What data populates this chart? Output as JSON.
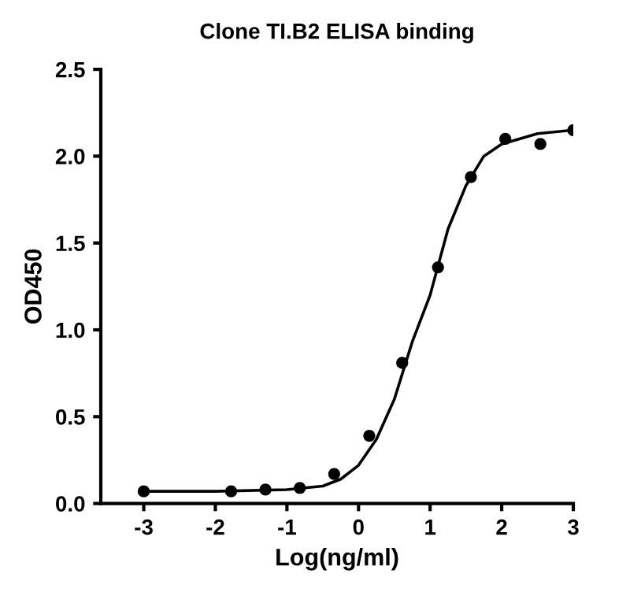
{
  "chart_data": {
    "type": "scatter",
    "title": "Clone TI.B2 ELISA binding",
    "xlabel": "Log(ng/ml)",
    "ylabel": "OD450",
    "xlim": [
      -3.6,
      3
    ],
    "xticks": [
      -3,
      -2,
      -1,
      0,
      1,
      2,
      3
    ],
    "ylim": [
      0,
      2.5
    ],
    "yticks": [
      {
        "value": 0,
        "label": "0.0"
      },
      {
        "value": 0.5,
        "label": "0.5"
      },
      {
        "value": 1,
        "label": "1.0"
      },
      {
        "value": 1.5,
        "label": "1.5"
      },
      {
        "value": 2,
        "label": "2.0"
      },
      {
        "value": 2.5,
        "label": "2.5"
      }
    ],
    "grid": false,
    "legend": false,
    "series": [
      {
        "color": "#000000",
        "marker": "circle",
        "x": [
          -3,
          -1.78,
          -1.3,
          -0.82,
          -0.34,
          0.15,
          0.61,
          1.11,
          1.57,
          2.05,
          2.54,
          3
        ],
        "values": [
          0.07,
          0.07,
          0.08,
          0.09,
          0.17,
          0.39,
          0.81,
          1.36,
          1.88,
          2.1,
          2.07,
          2.15
        ]
      },
      {
        "type": "line",
        "color": "#000000",
        "marker": "none",
        "line_style": "solid",
        "x": [
          -3,
          -2,
          -1,
          -0.5,
          -0.25,
          0,
          0.25,
          0.5,
          0.75,
          1,
          1.25,
          1.5,
          1.75,
          2,
          2.5,
          3
        ],
        "values": [
          0.07,
          0.07,
          0.08,
          0.1,
          0.14,
          0.22,
          0.37,
          0.6,
          0.93,
          1.2,
          1.58,
          1.83,
          2.0,
          2.07,
          2.13,
          2.15
        ]
      }
    ]
  }
}
